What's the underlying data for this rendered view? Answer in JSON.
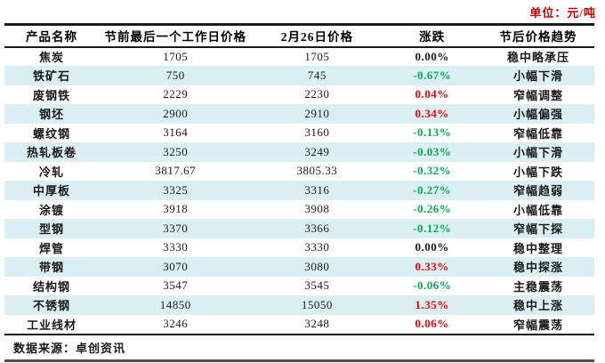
{
  "unit_label": "单位：元/吨",
  "source_label": "数据来源：卓创资讯",
  "colors": {
    "stripe_blue": "#daeef3",
    "rise_red": "#fe0000",
    "fall_green": "#00b050",
    "unit_red": "#c00000",
    "border_dark": "#1a1a1a"
  },
  "table": {
    "headers": [
      "产品名称",
      "节前最后一个工作日价格",
      "2月26日价格",
      "涨跌",
      "节后价格趋势"
    ],
    "rows": [
      {
        "name": "焦炭",
        "pre_holiday_price": "1705",
        "feb26_price": "1705",
        "change": "0.00%",
        "change_dir": "flat",
        "trend": "稳中略承压"
      },
      {
        "name": "铁矿石",
        "pre_holiday_price": "750",
        "feb26_price": "745",
        "change": "-0.67%",
        "change_dir": "down",
        "trend": "小幅下滑"
      },
      {
        "name": "废钢铁",
        "pre_holiday_price": "2229",
        "feb26_price": "2230",
        "change": "0.04%",
        "change_dir": "up",
        "trend": "窄幅调整"
      },
      {
        "name": "钢坯",
        "pre_holiday_price": "2900",
        "feb26_price": "2910",
        "change": "0.34%",
        "change_dir": "up",
        "trend": "小幅偏强"
      },
      {
        "name": "螺纹钢",
        "pre_holiday_price": "3164",
        "feb26_price": "3160",
        "change": "-0.13%",
        "change_dir": "down",
        "trend": "窄幅低靠"
      },
      {
        "name": "热轧板卷",
        "pre_holiday_price": "3250",
        "feb26_price": "3249",
        "change": "-0.03%",
        "change_dir": "down",
        "trend": "小幅下滑"
      },
      {
        "name": "冷轧",
        "pre_holiday_price": "3817.67",
        "feb26_price": "3805.33",
        "change": "-0.32%",
        "change_dir": "down",
        "trend": "小幅下跌"
      },
      {
        "name": "中厚板",
        "pre_holiday_price": "3325",
        "feb26_price": "3316",
        "change": "-0.27%",
        "change_dir": "down",
        "trend": "窄幅趋弱"
      },
      {
        "name": "涂镀",
        "pre_holiday_price": "3918",
        "feb26_price": "3908",
        "change": "-0.26%",
        "change_dir": "down",
        "trend": "小幅低靠"
      },
      {
        "name": "型钢",
        "pre_holiday_price": "3370",
        "feb26_price": "3366",
        "change": "-0.12%",
        "change_dir": "down",
        "trend": "窄幅下探"
      },
      {
        "name": "焊管",
        "pre_holiday_price": "3330",
        "feb26_price": "3330",
        "change": "0.00%",
        "change_dir": "flat",
        "trend": "稳中整理"
      },
      {
        "name": "带钢",
        "pre_holiday_price": "3070",
        "feb26_price": "3080",
        "change": "0.33%",
        "change_dir": "up",
        "trend": "稳中探涨"
      },
      {
        "name": "结构钢",
        "pre_holiday_price": "3547",
        "feb26_price": "3545",
        "change": "-0.06%",
        "change_dir": "down",
        "trend": "主稳震荡"
      },
      {
        "name": "不锈钢",
        "pre_holiday_price": "14850",
        "feb26_price": "15050",
        "change": "1.35%",
        "change_dir": "up",
        "trend": "稳中上涨"
      },
      {
        "name": "工业线材",
        "pre_holiday_price": "3246",
        "feb26_price": "3248",
        "change": "0.06%",
        "change_dir": "up",
        "trend": "窄幅震荡"
      }
    ]
  }
}
